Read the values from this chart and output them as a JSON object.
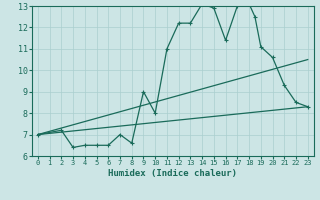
{
  "xlabel": "Humidex (Indice chaleur)",
  "bg_color": "#cce5e5",
  "grid_color": "#aacfcf",
  "line_color": "#1a6b5a",
  "line1_x": [
    0,
    2,
    3,
    4,
    5,
    6,
    7,
    8,
    9,
    10,
    11,
    12,
    13,
    14,
    15,
    16,
    17,
    18,
    18.5,
    19,
    20,
    21,
    22,
    23
  ],
  "line1_y": [
    7.0,
    7.2,
    6.4,
    6.5,
    6.5,
    6.5,
    7.0,
    6.6,
    9.0,
    8.0,
    11.0,
    12.2,
    12.2,
    13.1,
    12.9,
    11.4,
    13.0,
    13.1,
    12.5,
    11.1,
    10.6,
    9.3,
    8.5,
    8.3
  ],
  "line2_x": [
    0,
    23
  ],
  "line2_y": [
    7.0,
    8.3
  ],
  "line3_x": [
    0,
    23
  ],
  "line3_y": [
    7.0,
    10.5
  ],
  "xlim": [
    -0.5,
    23.5
  ],
  "ylim": [
    6,
    13
  ],
  "xticks": [
    0,
    1,
    2,
    3,
    4,
    5,
    6,
    7,
    8,
    9,
    10,
    11,
    12,
    13,
    14,
    15,
    16,
    17,
    18,
    19,
    20,
    21,
    22,
    23
  ],
  "yticks": [
    6,
    7,
    8,
    9,
    10,
    11,
    12,
    13
  ]
}
